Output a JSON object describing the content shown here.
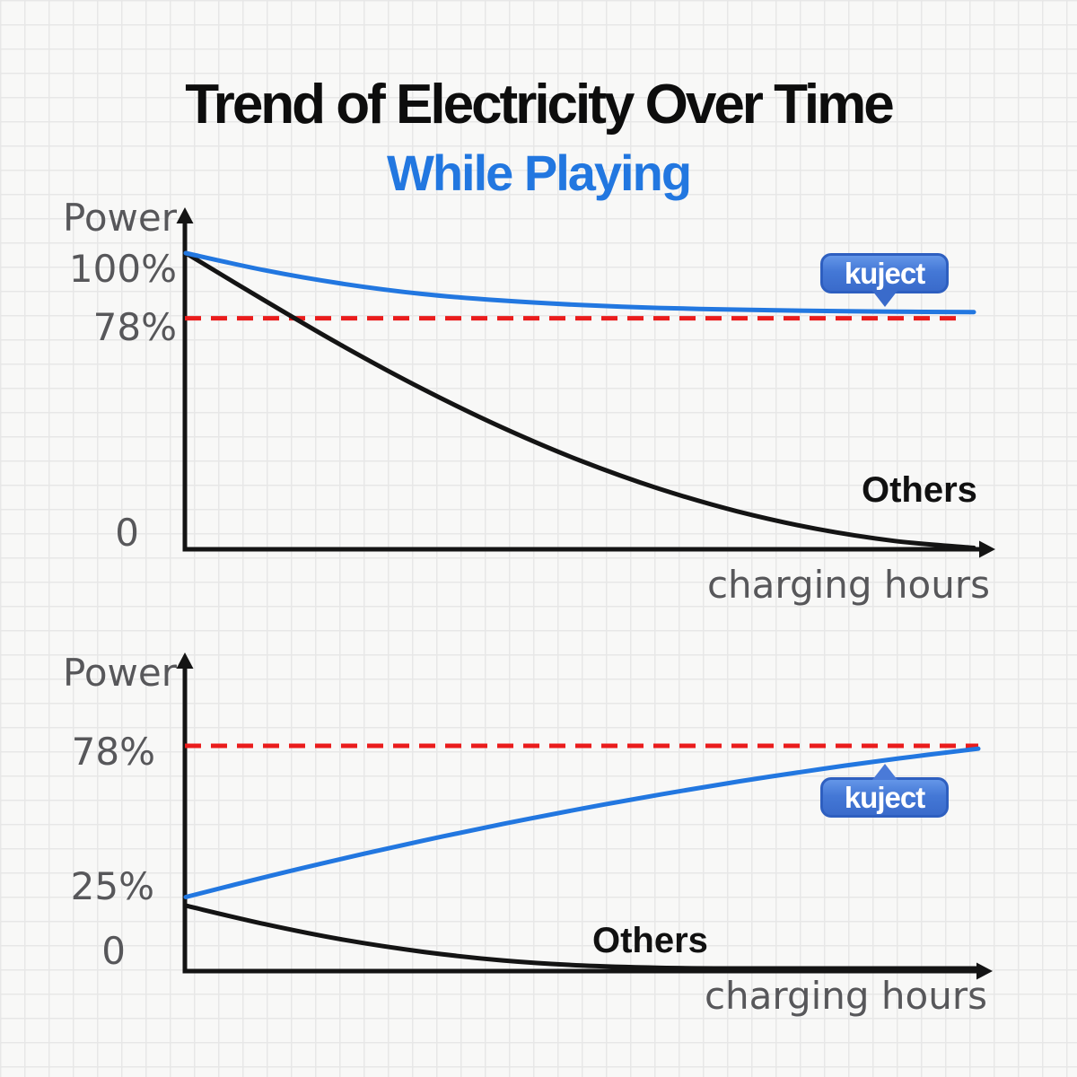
{
  "page": {
    "title_line1": "Trend of Electricity Over Time",
    "title_line2": "While Playing",
    "colors": {
      "accent_blue": "#2277e0",
      "reference_red": "#ea1c1c",
      "curve_black": "#141414",
      "label_gray": "#57575a"
    }
  },
  "chart_data": [
    {
      "id": "top-chart",
      "type": "line",
      "ylabel": "Power",
      "xlabel": "charging hours",
      "xlim": [
        0,
        10
      ],
      "ylim": [
        0,
        105
      ],
      "grid": "graph-paper background",
      "legend_position": "annotations on lines",
      "yticks": [
        {
          "label": "100%",
          "value": 100
        },
        {
          "label": "78%",
          "value": 78
        },
        {
          "label": "0",
          "value": 0
        }
      ],
      "reference_line": {
        "value": 78,
        "color": "#ea1c1c",
        "style": "dashed"
      },
      "series": [
        {
          "name": "kuject",
          "badge_label": "kuject",
          "color": "#2277e0",
          "x": [
            0,
            1,
            2,
            3,
            4,
            5,
            6,
            7,
            8,
            9,
            10
          ],
          "y": [
            100,
            94.2,
            89.6,
            86.2,
            84,
            82.5,
            81.5,
            80.9,
            80.5,
            80.2,
            80.1
          ]
        },
        {
          "name": "Others",
          "annotation": "Others",
          "color": "#141414",
          "x": [
            0,
            1,
            2,
            3,
            4,
            5,
            6,
            7,
            8,
            9,
            10
          ],
          "y": [
            100,
            84,
            68.5,
            54.2,
            41.3,
            30,
            20.5,
            12.8,
            6.9,
            2.8,
            0.5
          ]
        }
      ]
    },
    {
      "id": "bottom-chart",
      "type": "line",
      "ylabel": "Power",
      "xlabel": "charging hours",
      "xlim": [
        0,
        10
      ],
      "ylim": [
        0,
        85
      ],
      "grid": "graph-paper background",
      "legend_position": "annotations on lines",
      "yticks": [
        {
          "label": "78%",
          "value": 78
        },
        {
          "label": "25%",
          "value": 25
        },
        {
          "label": "0",
          "value": 0
        }
      ],
      "reference_line": {
        "value": 78,
        "color": "#ea1c1c",
        "style": "dashed"
      },
      "series": [
        {
          "name": "kuject",
          "badge_label": "kuject",
          "color": "#2277e0",
          "x": [
            0,
            1,
            2,
            3,
            4,
            5,
            6,
            7,
            8,
            9,
            10
          ],
          "y": [
            25,
            32,
            38.6,
            44.8,
            50.6,
            56,
            61,
            65.6,
            69.8,
            73.6,
            77
          ]
        },
        {
          "name": "Others",
          "annotation": "Others",
          "color": "#141414",
          "x": [
            0,
            1,
            2,
            3,
            4,
            5,
            6,
            7,
            8,
            9,
            10
          ],
          "y": [
            22,
            15.5,
            10,
            5.8,
            2.8,
            1,
            0.2,
            0,
            0,
            0,
            0
          ]
        }
      ]
    }
  ]
}
